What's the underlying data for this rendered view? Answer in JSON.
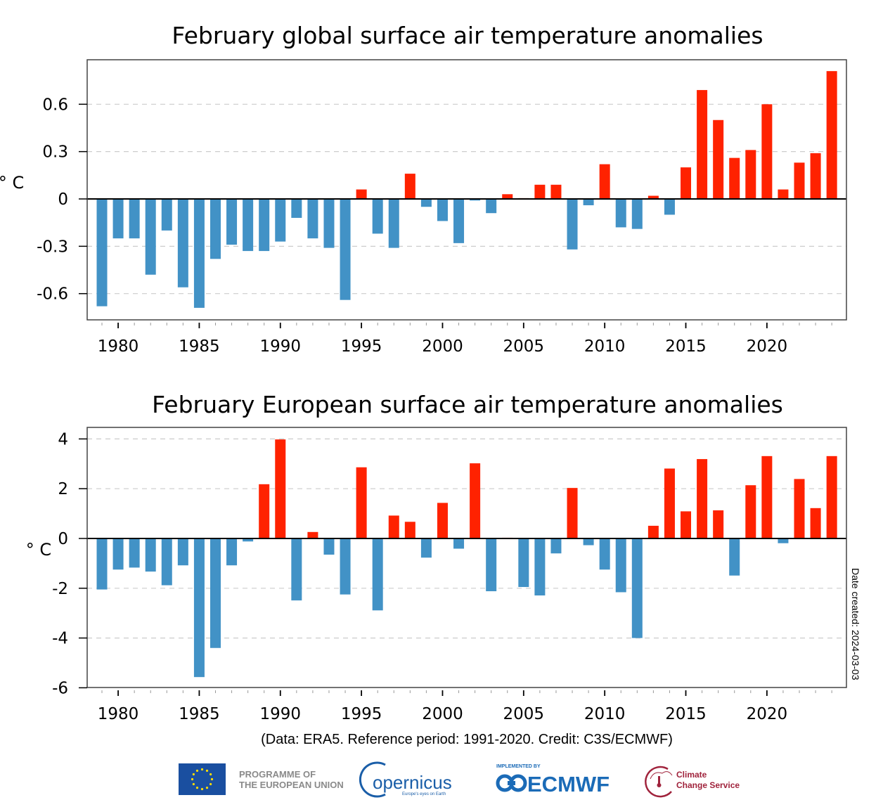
{
  "chart_data": [
    {
      "type": "bar",
      "title": "February global surface air temperature anomalies",
      "xlabel": "",
      "ylabel": "° C",
      "ylim": [
        -0.75,
        0.85
      ],
      "yticks": [
        0.6,
        0.3,
        0,
        -0.3,
        -0.6
      ],
      "ytick_labels": [
        "0.6",
        "0.3",
        "0",
        "-0.3",
        "-0.6"
      ],
      "xticks": [
        1980,
        1985,
        1990,
        1995,
        2000,
        2005,
        2010,
        2015,
        2020
      ],
      "xtick_labels": [
        "1980",
        "1985",
        "1990",
        "1995",
        "2000",
        "2005",
        "2010",
        "2015",
        "2020"
      ],
      "xlim": [
        1978,
        2025
      ],
      "grid": "horizontal-dashed",
      "positive_color": "#ff2200",
      "negative_color": "#4292c6",
      "categories": [
        1979,
        1980,
        1981,
        1982,
        1983,
        1984,
        1985,
        1986,
        1987,
        1988,
        1989,
        1990,
        1991,
        1992,
        1993,
        1994,
        1995,
        1996,
        1997,
        1998,
        1999,
        2000,
        2001,
        2002,
        2003,
        2004,
        2005,
        2006,
        2007,
        2008,
        2009,
        2010,
        2011,
        2012,
        2013,
        2014,
        2015,
        2016,
        2017,
        2018,
        2019,
        2020,
        2021,
        2022,
        2023,
        2024
      ],
      "values": [
        -0.68,
        -0.25,
        -0.25,
        -0.48,
        -0.2,
        -0.56,
        -0.69,
        -0.38,
        -0.29,
        -0.33,
        -0.33,
        -0.27,
        -0.12,
        -0.25,
        -0.31,
        -0.64,
        0.06,
        -0.22,
        -0.31,
        0.16,
        -0.05,
        -0.14,
        -0.28,
        -0.01,
        -0.09,
        0.03,
        0.005,
        0.09,
        0.09,
        -0.32,
        -0.04,
        0.22,
        -0.18,
        -0.19,
        0.02,
        -0.1,
        0.2,
        0.69,
        0.5,
        0.26,
        0.31,
        0.6,
        0.06,
        0.23,
        0.29,
        0.81
      ]
    },
    {
      "type": "bar",
      "title": "February European surface air temperature anomalies",
      "xlabel": "",
      "ylabel": "° C",
      "ylim": [
        -6,
        4.5
      ],
      "yticks": [
        4,
        2,
        0,
        -2,
        -4,
        -6
      ],
      "ytick_labels": [
        "4",
        "2",
        "0",
        "-2",
        "-4",
        "-6"
      ],
      "xticks": [
        1980,
        1985,
        1990,
        1995,
        2000,
        2005,
        2010,
        2015,
        2020
      ],
      "xtick_labels": [
        "1980",
        "1985",
        "1990",
        "1995",
        "2000",
        "2005",
        "2010",
        "2015",
        "2020"
      ],
      "xlim": [
        1978,
        2025
      ],
      "grid": "horizontal-dashed",
      "positive_color": "#ff2200",
      "negative_color": "#4292c6",
      "categories": [
        1979,
        1980,
        1981,
        1982,
        1983,
        1984,
        1985,
        1986,
        1987,
        1988,
        1989,
        1990,
        1991,
        1992,
        1993,
        1994,
        1995,
        1996,
        1997,
        1998,
        1999,
        2000,
        2001,
        2002,
        2003,
        2004,
        2005,
        2006,
        2007,
        2008,
        2009,
        2010,
        2011,
        2012,
        2013,
        2014,
        2015,
        2016,
        2017,
        2018,
        2019,
        2020,
        2021,
        2022,
        2023,
        2024
      ],
      "values": [
        -2.05,
        -1.25,
        -1.17,
        -1.33,
        -1.88,
        -1.08,
        -5.57,
        -4.4,
        -1.08,
        -0.12,
        2.18,
        3.98,
        -2.49,
        0.26,
        -0.65,
        -2.25,
        2.86,
        -2.89,
        0.92,
        0.67,
        -0.77,
        1.43,
        -0.41,
        3.02,
        -2.12,
        0.03,
        -1.95,
        -2.29,
        -0.6,
        2.03,
        -0.27,
        -1.25,
        -2.16,
        -4.0,
        0.51,
        2.81,
        1.09,
        3.19,
        1.13,
        -1.49,
        2.14,
        3.31,
        -0.19,
        2.39,
        1.22,
        3.31
      ]
    }
  ],
  "footer": {
    "credit": "(Data: ERA5.  Reference period: 1991-2020.  Credit: C3S/ECMWF)",
    "date_created": "Date created: 2024-03-03"
  },
  "logos": {
    "eu": {
      "line1": "PROGRAMME OF",
      "line2": "THE EUROPEAN UNION",
      "flag_color": "#1a4fa0",
      "star_color": "#ffdd00"
    },
    "copernicus": {
      "text": "opernicus",
      "sub": "Europe's eyes on Earth"
    },
    "ecmwf": {
      "implemented": "IMPLEMENTED BY",
      "text": "ECMWF"
    },
    "c3s": {
      "line1": "Climate",
      "line2": "Change Service"
    }
  }
}
